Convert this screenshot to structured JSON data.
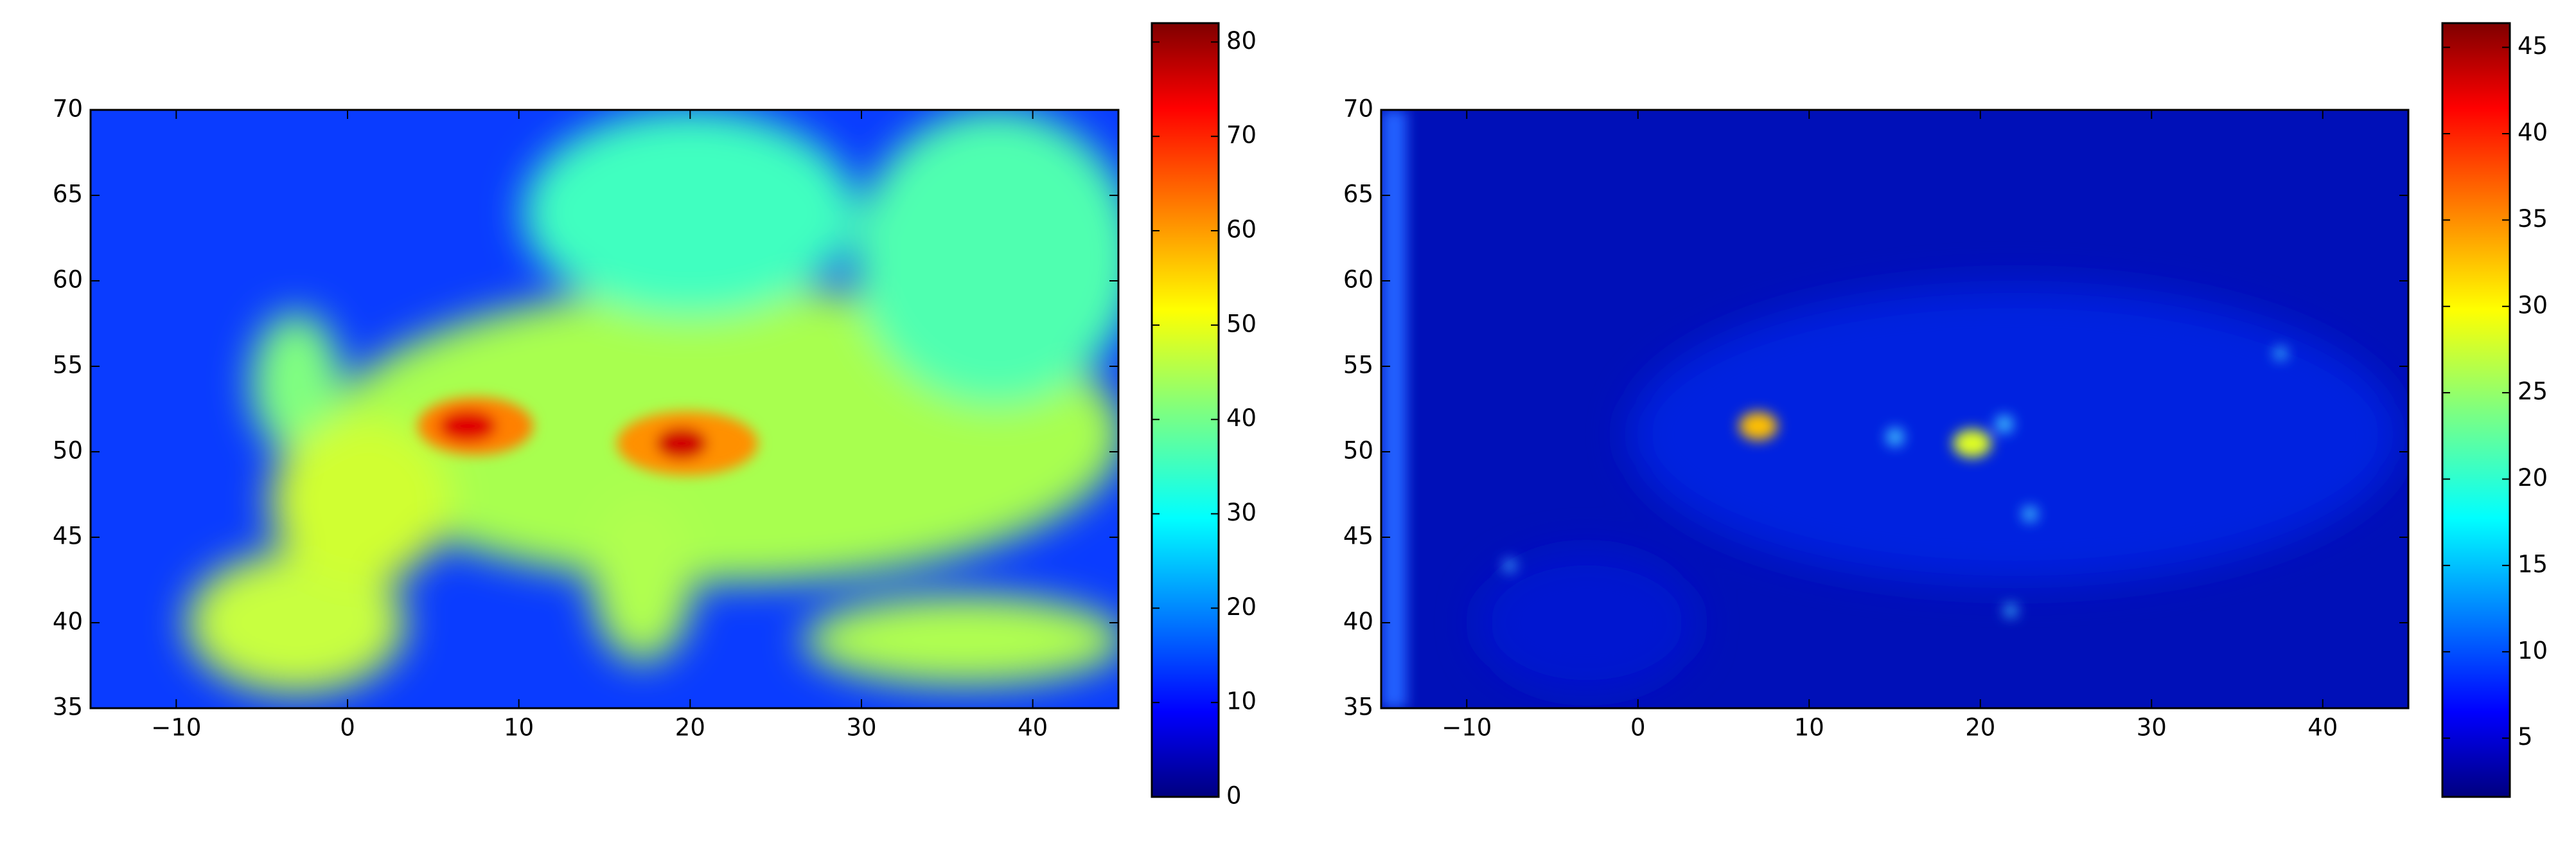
{
  "chart_data": [
    {
      "type": "heatmap",
      "colormap": "jet",
      "xlim": [
        -15,
        45
      ],
      "ylim": [
        35,
        70
      ],
      "xticks": [
        {
          "value": -10,
          "label": "−10"
        },
        0,
        10,
        20,
        30,
        40
      ],
      "yticks": [
        35,
        40,
        45,
        50,
        55,
        60,
        65,
        70
      ],
      "clim": [
        0,
        82
      ],
      "cticks": [
        0,
        10,
        20,
        30,
        40,
        50,
        60,
        70,
        80
      ]
    },
    {
      "type": "heatmap",
      "colormap": "jet",
      "xlim": [
        -15,
        45
      ],
      "ylim": [
        35,
        70
      ],
      "xticks": [
        {
          "value": -10,
          "label": "−10"
        },
        0,
        10,
        20,
        30,
        40
      ],
      "yticks": [
        35,
        40,
        45,
        50,
        55,
        60,
        65,
        70
      ],
      "clim": [
        1.6,
        46.4
      ],
      "cticks": [
        5,
        10,
        15,
        20,
        25,
        30,
        35,
        40,
        45
      ]
    }
  ]
}
